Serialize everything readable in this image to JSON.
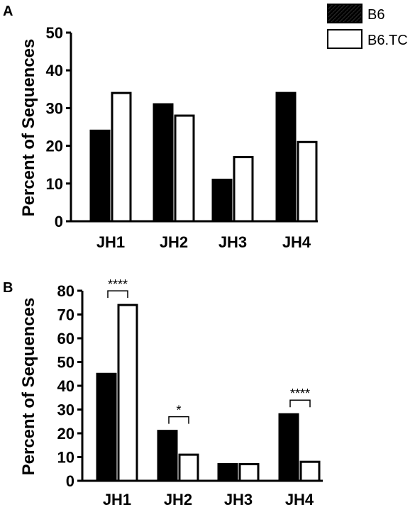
{
  "chart_data": [
    {
      "type": "bar",
      "panel_label": "A",
      "categories": [
        "JH1",
        "JH2",
        "JH3",
        "JH4"
      ],
      "series": [
        {
          "name": "B6",
          "values": [
            24,
            31,
            11,
            34
          ],
          "color": "#000000"
        },
        {
          "name": "B6.TC",
          "values": [
            34,
            28,
            17,
            21
          ],
          "color": "#ffffff"
        }
      ],
      "ylabel": "Percent of Sequences",
      "ylim": [
        0,
        50
      ],
      "yticks": [
        0,
        10,
        20,
        30,
        40,
        50
      ],
      "significance": [],
      "legend": "top-right",
      "grid": false
    },
    {
      "type": "bar",
      "panel_label": "B",
      "categories": [
        "JH1",
        "JH2",
        "JH3",
        "JH4"
      ],
      "series": [
        {
          "name": "B6",
          "values": [
            45,
            21,
            7,
            28
          ],
          "color": "#000000"
        },
        {
          "name": "B6.TC",
          "values": [
            74,
            11,
            7,
            8
          ],
          "color": "#ffffff"
        }
      ],
      "ylabel": "Percent of Sequences",
      "ylim": [
        0,
        80
      ],
      "yticks": [
        0,
        10,
        20,
        30,
        40,
        50,
        60,
        70,
        80
      ],
      "significance": [
        {
          "category": "JH1",
          "label": "****"
        },
        {
          "category": "JH2",
          "label": "*"
        },
        {
          "category": "JH4",
          "label": "****"
        }
      ],
      "grid": false
    }
  ],
  "legend": {
    "items": [
      {
        "label": "B6",
        "swatch": "hatched-black"
      },
      {
        "label": "B6.TC",
        "swatch": "white"
      }
    ]
  }
}
